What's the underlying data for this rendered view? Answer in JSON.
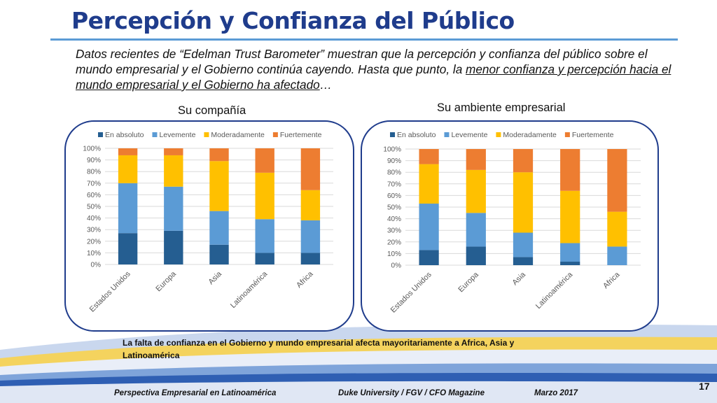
{
  "slide": {
    "title": "Percepción y Confianza del Público",
    "intro": {
      "part1": "Datos recientes de “Edelman Trust Barometer” muestran que la percepción y confianza del público sobre el mundo empresarial y el Gobierno continúa cayendo. Hasta que punto, la ",
      "underlined": "menor confianza y percepción hacia el mundo empresarial y el Gobierno ha afectado",
      "part2": "…"
    },
    "note": "La falta de confianza en el Gobierno y mundo empresarial afecta mayoritariamente a Africa, Asia y Latinoamérica",
    "footer": {
      "left": "Perspectiva Empresarial en Latinoamérica",
      "center": "Duke University / FGV / CFO Magazine",
      "right": "Marzo 2017"
    },
    "page_number": "17"
  },
  "colors": {
    "en_absoluto": "#255e91",
    "levemente": "#5b9bd5",
    "moderadamente": "#ffc000",
    "fuertemente": "#ed7d31",
    "title": "#1f3c8c"
  },
  "chart_data": [
    {
      "type": "bar",
      "stacked": true,
      "title": "Su compañía",
      "categories": [
        "Estados Unidos",
        "Europa",
        "Asia",
        "Latinoamérica",
        "Africa"
      ],
      "series": [
        {
          "name": "En absoluto",
          "values": [
            27,
            29,
            17,
            10,
            10
          ]
        },
        {
          "name": "Levemente",
          "values": [
            43,
            38,
            29,
            29,
            28
          ]
        },
        {
          "name": "Moderadamente",
          "values": [
            24,
            27,
            43,
            40,
            26
          ]
        },
        {
          "name": "Fuertemente",
          "values": [
            6,
            6,
            11,
            21,
            36
          ]
        }
      ],
      "y_ticks": [
        "0%",
        "10%",
        "20%",
        "30%",
        "40%",
        "50%",
        "60%",
        "70%",
        "80%",
        "90%",
        "100%"
      ],
      "ylim": [
        0,
        100
      ],
      "grid": true,
      "legend": "top"
    },
    {
      "type": "bar",
      "stacked": true,
      "title": "Su ambiente empresarial",
      "categories": [
        "Estados Unidos",
        "Europa",
        "Asia",
        "Latinoamérica",
        "Africa"
      ],
      "series": [
        {
          "name": "En absoluto",
          "values": [
            13,
            16,
            7,
            3,
            0
          ]
        },
        {
          "name": "Levemente",
          "values": [
            40,
            29,
            21,
            16,
            16
          ]
        },
        {
          "name": "Moderadamente",
          "values": [
            34,
            37,
            52,
            45,
            30
          ]
        },
        {
          "name": "Fuertemente",
          "values": [
            13,
            18,
            20,
            36,
            54
          ]
        }
      ],
      "y_ticks": [
        "0%",
        "10%",
        "20%",
        "30%",
        "40%",
        "50%",
        "60%",
        "70%",
        "80%",
        "90%",
        "100%"
      ],
      "ylim": [
        0,
        100
      ],
      "grid": true,
      "legend": "top"
    }
  ]
}
